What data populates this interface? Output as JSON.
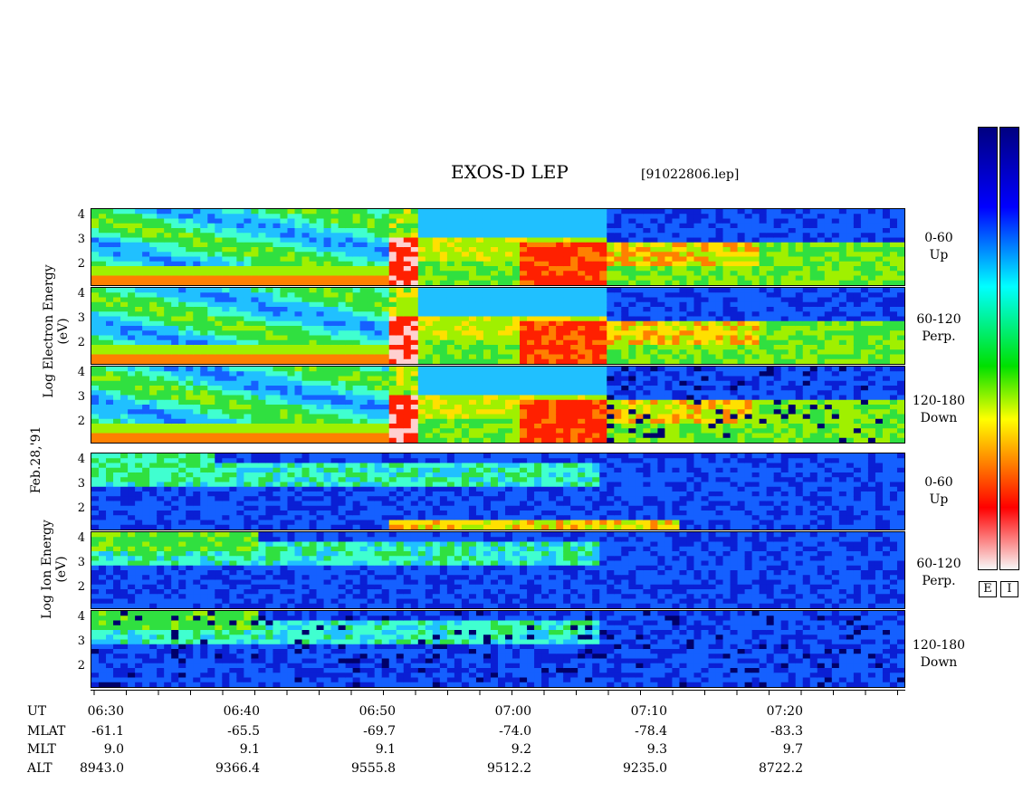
{
  "title": "EXOS-D LEP",
  "filename": "[91022806.lep]",
  "electron_label": "Log  Electron  Energy  (eV)",
  "ion_label": "Log  Ion  Energy  (eV)",
  "date_label": "Feb.28,'91",
  "y_ticks": [
    "4",
    "3",
    "2"
  ],
  "electron_panels": [
    {
      "line1": "0-60",
      "line2": "Up"
    },
    {
      "line1": "60-120",
      "line2": "Perp."
    },
    {
      "line1": "120-180",
      "line2": "Down"
    }
  ],
  "ion_panels": [
    {
      "line1": "0-60",
      "line2": "Up"
    },
    {
      "line1": "60-120",
      "line2": "Perp."
    },
    {
      "line1": "120-180",
      "line2": "Down"
    }
  ],
  "colorbar_labels": [
    "E",
    "I"
  ],
  "chart_data": {
    "type": "heatmap",
    "title": "EXOS-D LEP",
    "x_axis": "UT",
    "x_ticks": [
      "06:30",
      "06:40",
      "06:50",
      "07:00",
      "07:10",
      "07:20"
    ],
    "y_range": [
      1,
      4
    ],
    "y_ticks": [
      4,
      3,
      2
    ],
    "panels": [
      "Electron 0-60 Up",
      "Electron 60-120 Perp.",
      "Electron 120-180 Down",
      "Ion 0-60 Up",
      "Ion 60-120 Perp.",
      "Ion 120-180 Down"
    ],
    "colorscale": [
      "#f8f8f8",
      "#ff0000",
      "#ffff00",
      "#00e000",
      "#00ffff",
      "#0000ff",
      "#000080"
    ]
  },
  "ephemeris": {
    "rows": [
      {
        "name": "UT",
        "values": [
          "06:30",
          "06:40",
          "06:50",
          "07:00",
          "07:10",
          "07:20"
        ]
      },
      {
        "name": "MLAT",
        "values": [
          "-61.1",
          "-65.5",
          "-69.7",
          "-74.0",
          "-78.4",
          "-83.3"
        ]
      },
      {
        "name": "MLT",
        "values": [
          "9.0",
          "9.1",
          "9.1",
          "9.2",
          "9.3",
          "9.7"
        ]
      },
      {
        "name": "ALT",
        "values": [
          "8943.0",
          "9366.4",
          "9555.8",
          "9512.2",
          "9235.0",
          "8722.2"
        ]
      }
    ]
  }
}
